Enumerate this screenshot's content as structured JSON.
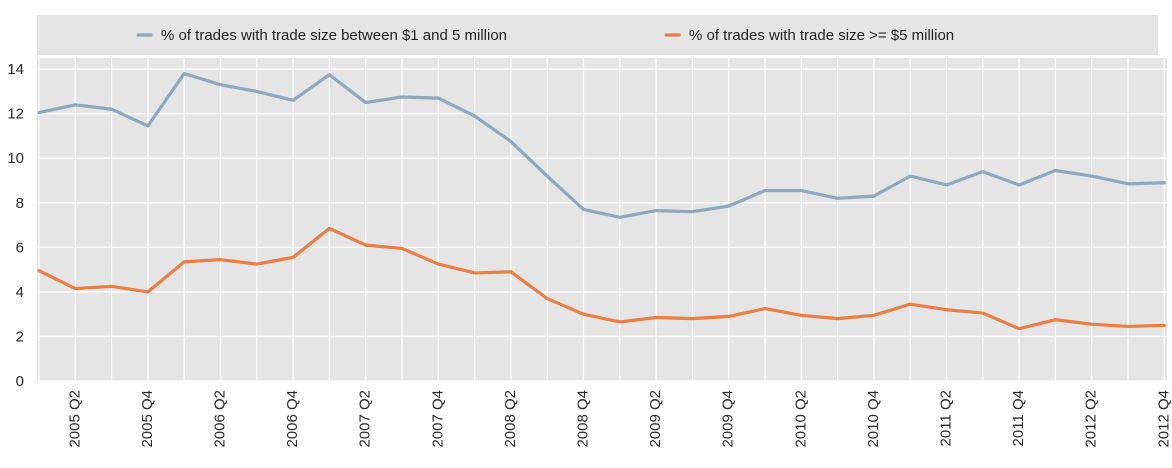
{
  "chart_data": {
    "type": "line",
    "title": "",
    "xlabel": "",
    "ylabel": "",
    "categories": [
      "2005 Q1",
      "2005 Q2",
      "2005 Q3",
      "2005 Q4",
      "2006 Q1",
      "2006 Q2",
      "2006 Q3",
      "2006 Q4",
      "2007 Q1",
      "2007 Q2",
      "2007 Q3",
      "2007 Q4",
      "2008 Q1",
      "2008 Q2",
      "2008 Q3",
      "2008 Q4",
      "2009 Q1",
      "2009 Q2",
      "2009 Q3",
      "2009 Q4",
      "2010 Q1",
      "2010 Q2",
      "2010 Q3",
      "2010 Q4",
      "2011 Q1",
      "2011 Q2",
      "2011 Q3",
      "2011 Q4",
      "2012 Q1",
      "2012 Q2",
      "2012 Q3",
      "2012 Q4"
    ],
    "tick_labels": [
      "2005 Q2",
      "2005 Q4",
      "2006 Q2",
      "2006 Q4",
      "2007 Q2",
      "2007 Q4",
      "2008 Q2",
      "2008 Q4",
      "2009 Q2",
      "2009 Q4",
      "2010 Q2",
      "2010 Q4",
      "2011 Q2",
      "2011 Q4",
      "2012 Q2",
      "2012 Q4"
    ],
    "y_ticks": [
      0,
      2,
      4,
      6,
      8,
      10,
      12,
      14
    ],
    "ylim": [
      0,
      14.5
    ],
    "grid": true,
    "legend_position": "top",
    "background_color": "#e5e5e5",
    "series": [
      {
        "name": "% of trades with trade size between $1 and 5 million",
        "color": "#8fa7bf",
        "values": [
          12.05,
          12.4,
          12.2,
          11.45,
          13.8,
          13.3,
          13.0,
          12.6,
          13.75,
          12.5,
          12.75,
          12.7,
          11.9,
          10.75,
          9.2,
          7.7,
          7.35,
          7.65,
          7.6,
          7.85,
          8.55,
          8.55,
          8.2,
          8.3,
          9.2,
          8.8,
          9.4,
          8.8,
          9.45,
          9.2,
          8.85,
          8.9
        ]
      },
      {
        "name": "% of trades with trade size >= $5 million",
        "color": "#ea7e43",
        "values": [
          4.95,
          4.15,
          4.25,
          4.0,
          5.35,
          5.45,
          5.25,
          5.55,
          6.85,
          6.1,
          5.95,
          5.25,
          4.85,
          4.9,
          3.7,
          3.0,
          2.65,
          2.85,
          2.8,
          2.9,
          3.25,
          2.95,
          2.8,
          2.95,
          3.45,
          3.2,
          3.05,
          2.35,
          2.75,
          2.55,
          2.45,
          2.5
        ]
      }
    ]
  }
}
